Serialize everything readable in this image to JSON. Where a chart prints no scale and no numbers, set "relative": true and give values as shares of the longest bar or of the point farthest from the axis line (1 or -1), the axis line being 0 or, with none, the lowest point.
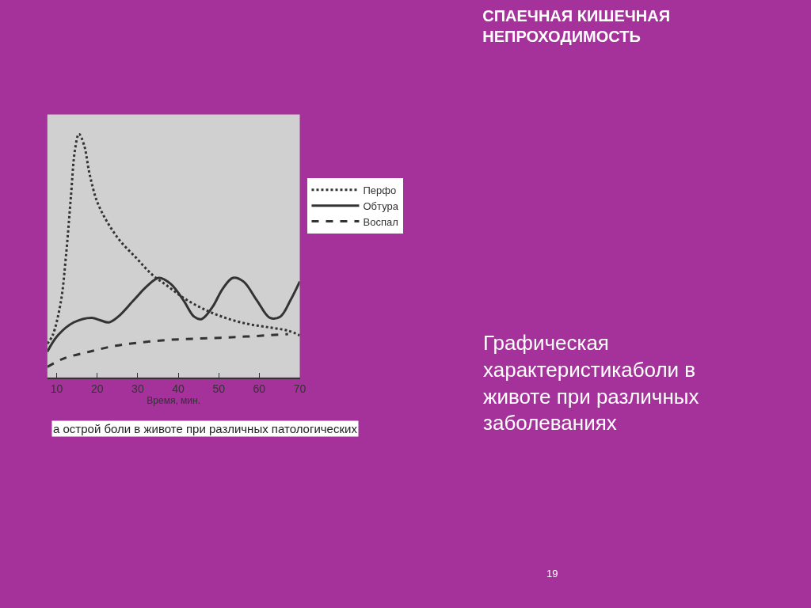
{
  "chart_data": {
    "type": "line",
    "title": "СПАЕЧНАЯ КИШЕЧНАЯ НЕПРОХОДИМОСТЬ",
    "xlabel": "Время, мин.",
    "relative": true,
    "tick_labels": "x",
    "grid": false,
    "legend": "right",
    "marker": "none",
    "xlim": [
      7.7,
      70
    ],
    "xticks": [
      10,
      20,
      30,
      40,
      50,
      60,
      70
    ],
    "series": [
      {
        "name": "Перфо",
        "color": "#333333",
        "line_style": "dotted",
        "x": [
          7.7,
          9.0,
          11.0,
          12.3,
          13.5,
          14.5,
          15.5,
          16.8,
          18.1,
          20.0,
          22.6,
          25.8,
          29.7,
          33.5,
          37.4,
          41.3,
          46.5,
          51.6,
          56.8,
          61.9,
          67.1,
          70
        ],
        "values": [
          0.139,
          0.173,
          0.308,
          0.5,
          0.74,
          0.933,
          1.0,
          0.952,
          0.837,
          0.721,
          0.635,
          0.558,
          0.49,
          0.423,
          0.375,
          0.327,
          0.279,
          0.245,
          0.221,
          0.207,
          0.192,
          0.173
        ]
      },
      {
        "name": "Обтура",
        "color": "#333333",
        "line_style": "solid",
        "x": [
          7.7,
          10.3,
          14.2,
          18.7,
          20.6,
          22.9,
          25.2,
          29.0,
          32.3,
          35.2,
          38.1,
          41.3,
          43.9,
          45.8,
          48.4,
          51.0,
          53.5,
          56.1,
          59.4,
          62.6,
          65.2,
          67.7,
          70
        ],
        "values": [
          0.106,
          0.173,
          0.226,
          0.245,
          0.236,
          0.226,
          0.25,
          0.317,
          0.375,
          0.409,
          0.385,
          0.317,
          0.25,
          0.24,
          0.288,
          0.365,
          0.409,
          0.394,
          0.317,
          0.245,
          0.25,
          0.317,
          0.394
        ]
      },
      {
        "name": "Воспал",
        "color": "#333333",
        "line_style": "dashed",
        "x": [
          7.7,
          11.6,
          18.1,
          24.5,
          31.0,
          37.4,
          43.9,
          50.3,
          56.8,
          67.1
        ],
        "values": [
          0.043,
          0.077,
          0.106,
          0.13,
          0.144,
          0.154,
          0.159,
          0.163,
          0.168,
          0.178
        ]
      }
    ],
    "annotations": [
      "а острой боли в животе при различных патологических",
      "Графическая характеристикаболи в животе при различных заболеваниях",
      "19"
    ]
  }
}
